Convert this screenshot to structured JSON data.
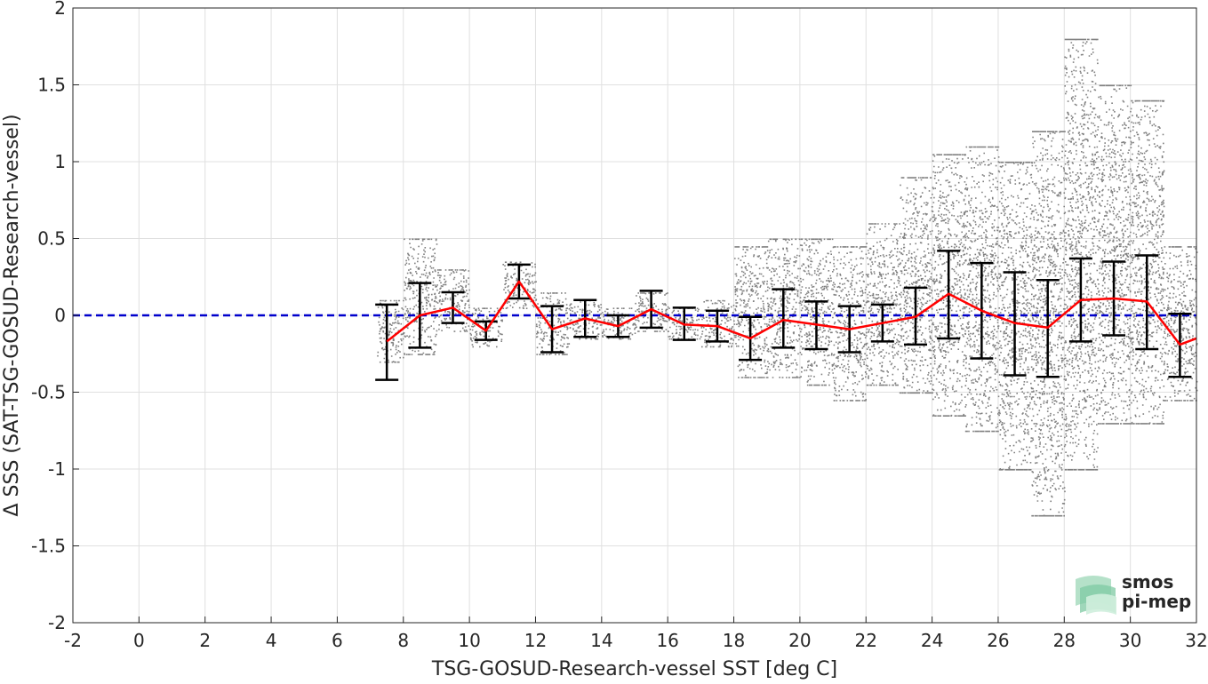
{
  "chart_data": {
    "type": "scatter",
    "xlabel": "TSG-GOSUD-Research-vessel SST [deg C]",
    "ylabel": "Δ SSS (SAT-TSG-GOSUD-Research-vessel)",
    "xlim": [
      -2,
      32
    ],
    "ylim": [
      -2,
      2
    ],
    "xticks": [
      -2,
      0,
      2,
      4,
      6,
      8,
      10,
      12,
      14,
      16,
      18,
      20,
      22,
      24,
      26,
      28,
      30,
      32
    ],
    "yticks": [
      2,
      1.5,
      1,
      0.5,
      0,
      -0.5,
      -1,
      -1.5,
      -2
    ],
    "xtick_labels": [
      "-2",
      "0",
      "2",
      "4",
      "6",
      "8",
      "10",
      "12",
      "14",
      "16",
      "18",
      "20",
      "22",
      "24",
      "26",
      "28",
      "30",
      "32"
    ],
    "ytick_labels": [
      "2",
      "1.5",
      "1",
      "0.5",
      "0",
      "-0.5",
      "-1",
      "-1.5",
      "-2"
    ],
    "grid": true,
    "reference_line": {
      "y": 0,
      "color": "#0000cc",
      "style": "dashed"
    },
    "scatter_color": "#808080",
    "mean_line_color": "#ff0000",
    "errorbar_color": "#000000",
    "binned_stats": {
      "x": [
        7.5,
        8.5,
        9.5,
        10.5,
        11.5,
        12.5,
        13.5,
        14.5,
        15.5,
        16.5,
        17.5,
        18.5,
        19.5,
        20.5,
        21.5,
        22.5,
        23.5,
        24.5,
        25.5,
        26.5,
        27.5,
        28.5,
        29.5,
        30.5,
        31.5,
        32.0
      ],
      "mean": [
        -0.17,
        0.0,
        0.05,
        -0.1,
        0.22,
        -0.09,
        -0.02,
        -0.07,
        0.04,
        -0.06,
        -0.07,
        -0.15,
        -0.03,
        -0.06,
        -0.09,
        -0.05,
        -0.01,
        0.14,
        0.03,
        -0.05,
        -0.08,
        0.1,
        0.11,
        0.09,
        -0.19,
        -0.15
      ],
      "lower": [
        -0.42,
        -0.21,
        -0.05,
        -0.16,
        0.11,
        -0.24,
        -0.14,
        -0.14,
        -0.08,
        -0.16,
        -0.17,
        -0.29,
        -0.21,
        -0.22,
        -0.24,
        -0.17,
        -0.19,
        -0.15,
        -0.28,
        -0.39,
        -0.4,
        -0.17,
        -0.13,
        -0.22,
        -0.4,
        null
      ],
      "upper": [
        0.07,
        0.21,
        0.15,
        -0.04,
        0.33,
        0.06,
        0.1,
        0.0,
        0.16,
        0.05,
        0.03,
        -0.01,
        0.17,
        0.09,
        0.06,
        0.07,
        0.18,
        0.42,
        0.34,
        0.28,
        0.23,
        0.37,
        0.35,
        0.39,
        0.01,
        null
      ]
    },
    "scatter_envelope": [
      {
        "x0": 7.2,
        "x1": 8.0,
        "ymin": -0.3,
        "ymax": 0.1
      },
      {
        "x0": 8.0,
        "x1": 9.0,
        "ymin": -0.25,
        "ymax": 0.5
      },
      {
        "x0": 9.0,
        "x1": 10.0,
        "ymin": -0.1,
        "ymax": 0.3
      },
      {
        "x0": 10.0,
        "x1": 11.0,
        "ymin": -0.2,
        "ymax": 0.05
      },
      {
        "x0": 11.0,
        "x1": 12.0,
        "ymin": 0.05,
        "ymax": 0.35
      },
      {
        "x0": 12.0,
        "x1": 13.0,
        "ymin": -0.25,
        "ymax": 0.15
      },
      {
        "x0": 13.0,
        "x1": 14.0,
        "ymin": -0.15,
        "ymax": 0.1
      },
      {
        "x0": 14.0,
        "x1": 15.0,
        "ymin": -0.15,
        "ymax": 0.05
      },
      {
        "x0": 15.0,
        "x1": 16.0,
        "ymin": -0.1,
        "ymax": 0.15
      },
      {
        "x0": 16.0,
        "x1": 17.0,
        "ymin": -0.15,
        "ymax": 0.05
      },
      {
        "x0": 17.0,
        "x1": 18.0,
        "ymin": -0.2,
        "ymax": 0.1
      },
      {
        "x0": 18.0,
        "x1": 19.0,
        "ymin": -0.4,
        "ymax": 0.45
      },
      {
        "x0": 19.0,
        "x1": 20.0,
        "ymin": -0.4,
        "ymax": 0.5
      },
      {
        "x0": 20.0,
        "x1": 21.0,
        "ymin": -0.45,
        "ymax": 0.5
      },
      {
        "x0": 21.0,
        "x1": 22.0,
        "ymin": -0.55,
        "ymax": 0.45
      },
      {
        "x0": 22.0,
        "x1": 23.0,
        "ymin": -0.45,
        "ymax": 0.6
      },
      {
        "x0": 23.0,
        "x1": 24.0,
        "ymin": -0.5,
        "ymax": 0.9
      },
      {
        "x0": 24.0,
        "x1": 25.0,
        "ymin": -0.65,
        "ymax": 1.05
      },
      {
        "x0": 25.0,
        "x1": 26.0,
        "ymin": -0.75,
        "ymax": 1.1
      },
      {
        "x0": 26.0,
        "x1": 27.0,
        "ymin": -1.0,
        "ymax": 1.0
      },
      {
        "x0": 27.0,
        "x1": 28.0,
        "ymin": -1.3,
        "ymax": 1.2
      },
      {
        "x0": 28.0,
        "x1": 29.0,
        "ymin": -1.0,
        "ymax": 1.8
      },
      {
        "x0": 29.0,
        "x1": 30.0,
        "ymin": -0.7,
        "ymax": 1.5
      },
      {
        "x0": 30.0,
        "x1": 31.0,
        "ymin": -0.7,
        "ymax": 1.4
      },
      {
        "x0": 31.0,
        "x1": 32.0,
        "ymin": -0.55,
        "ymax": 0.45
      }
    ],
    "watermark": {
      "line1": "smos",
      "line2": "pi-mep",
      "color": "#7fbf9f"
    }
  }
}
